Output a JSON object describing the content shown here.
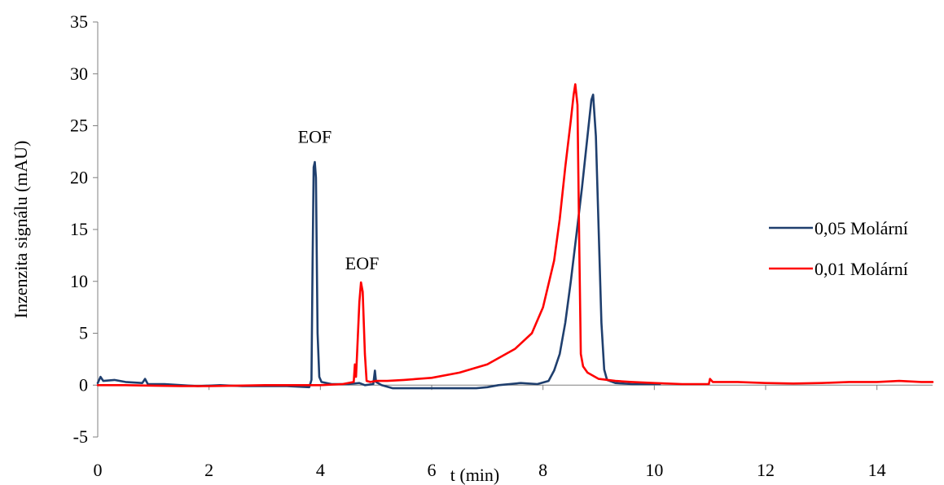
{
  "chart_data": {
    "type": "line",
    "title": "",
    "xlabel": "t (min)",
    "ylabel": "Inzenzita signálu (mAU)",
    "xlim": [
      0,
      15
    ],
    "ylim": [
      -5,
      35
    ],
    "x_ticks": [
      0,
      2,
      4,
      6,
      8,
      10,
      12,
      14
    ],
    "y_ticks": [
      -5,
      0,
      5,
      10,
      15,
      20,
      25,
      30,
      35
    ],
    "grid": false,
    "legend_position": "right",
    "annotations": [
      {
        "text": "EOF",
        "x": 3.9,
        "y": 24
      },
      {
        "text": "EOF",
        "x": 4.75,
        "y": 11.8
      }
    ],
    "series": [
      {
        "name": "0,05 Molární",
        "color": "#1F3F6E",
        "points": [
          [
            0,
            0.2
          ],
          [
            0.05,
            0.8
          ],
          [
            0.1,
            0.4
          ],
          [
            0.3,
            0.5
          ],
          [
            0.5,
            0.3
          ],
          [
            0.8,
            0.2
          ],
          [
            0.85,
            0.6
          ],
          [
            0.9,
            0.1
          ],
          [
            1.2,
            0.1
          ],
          [
            1.5,
            0.0
          ],
          [
            1.8,
            -0.1
          ],
          [
            2.2,
            0.0
          ],
          [
            2.6,
            -0.1
          ],
          [
            3.0,
            -0.1
          ],
          [
            3.4,
            -0.1
          ],
          [
            3.8,
            -0.2
          ],
          [
            3.84,
            0.5
          ],
          [
            3.86,
            12.0
          ],
          [
            3.88,
            21.0
          ],
          [
            3.9,
            21.5
          ],
          [
            3.92,
            20.0
          ],
          [
            3.95,
            5.0
          ],
          [
            3.98,
            0.8
          ],
          [
            4.02,
            0.3
          ],
          [
            4.2,
            0.1
          ],
          [
            4.5,
            0.1
          ],
          [
            4.7,
            0.2
          ],
          [
            4.8,
            0.0
          ],
          [
            4.95,
            0.1
          ],
          [
            4.98,
            1.4
          ],
          [
            5.0,
            0.3
          ],
          [
            5.1,
            0.0
          ],
          [
            5.3,
            -0.3
          ],
          [
            5.6,
            -0.3
          ],
          [
            6.0,
            -0.3
          ],
          [
            6.4,
            -0.3
          ],
          [
            6.8,
            -0.3
          ],
          [
            7.0,
            -0.2
          ],
          [
            7.2,
            0.0
          ],
          [
            7.6,
            0.2
          ],
          [
            7.9,
            0.1
          ],
          [
            8.1,
            0.4
          ],
          [
            8.2,
            1.4
          ],
          [
            8.3,
            3.0
          ],
          [
            8.4,
            6.0
          ],
          [
            8.5,
            10.0
          ],
          [
            8.6,
            14.5
          ],
          [
            8.7,
            19.0
          ],
          [
            8.8,
            24.0
          ],
          [
            8.87,
            27.5
          ],
          [
            8.9,
            28.0
          ],
          [
            8.95,
            24.0
          ],
          [
            9.0,
            15.0
          ],
          [
            9.05,
            6.0
          ],
          [
            9.1,
            1.5
          ],
          [
            9.15,
            0.5
          ],
          [
            9.3,
            0.2
          ],
          [
            9.6,
            0.1
          ],
          [
            10.1,
            0.1
          ]
        ]
      },
      {
        "name": "0,01 Molární",
        "color": "#FF0000",
        "points": [
          [
            0,
            0.0
          ],
          [
            0.5,
            0.0
          ],
          [
            1.0,
            -0.05
          ],
          [
            1.5,
            -0.1
          ],
          [
            2.0,
            -0.1
          ],
          [
            2.5,
            -0.05
          ],
          [
            3.0,
            0.0
          ],
          [
            3.5,
            0.0
          ],
          [
            4.0,
            0.0
          ],
          [
            4.4,
            0.1
          ],
          [
            4.6,
            0.3
          ],
          [
            4.62,
            2.0
          ],
          [
            4.64,
            0.8
          ],
          [
            4.66,
            3.0
          ],
          [
            4.7,
            8.0
          ],
          [
            4.73,
            9.9
          ],
          [
            4.76,
            9.0
          ],
          [
            4.8,
            3.0
          ],
          [
            4.83,
            0.4
          ],
          [
            4.9,
            0.3
          ],
          [
            5.0,
            0.4
          ],
          [
            5.2,
            0.4
          ],
          [
            5.5,
            0.5
          ],
          [
            6.0,
            0.7
          ],
          [
            6.5,
            1.2
          ],
          [
            7.0,
            2.0
          ],
          [
            7.5,
            3.5
          ],
          [
            7.8,
            5.0
          ],
          [
            8.0,
            7.5
          ],
          [
            8.2,
            12.0
          ],
          [
            8.3,
            16.0
          ],
          [
            8.4,
            21.0
          ],
          [
            8.5,
            25.5
          ],
          [
            8.55,
            28.0
          ],
          [
            8.58,
            29.0
          ],
          [
            8.62,
            27.0
          ],
          [
            8.65,
            14.0
          ],
          [
            8.68,
            3.0
          ],
          [
            8.72,
            1.8
          ],
          [
            8.8,
            1.2
          ],
          [
            9.0,
            0.6
          ],
          [
            9.3,
            0.4
          ],
          [
            9.6,
            0.3
          ],
          [
            10.0,
            0.2
          ],
          [
            10.5,
            0.1
          ],
          [
            10.98,
            0.1
          ],
          [
            11.0,
            0.6
          ],
          [
            11.05,
            0.3
          ],
          [
            11.5,
            0.3
          ],
          [
            12.0,
            0.2
          ],
          [
            12.5,
            0.15
          ],
          [
            13.0,
            0.2
          ],
          [
            13.5,
            0.3
          ],
          [
            14.0,
            0.3
          ],
          [
            14.4,
            0.4
          ],
          [
            14.8,
            0.3
          ],
          [
            15.0,
            0.3
          ]
        ]
      }
    ]
  }
}
